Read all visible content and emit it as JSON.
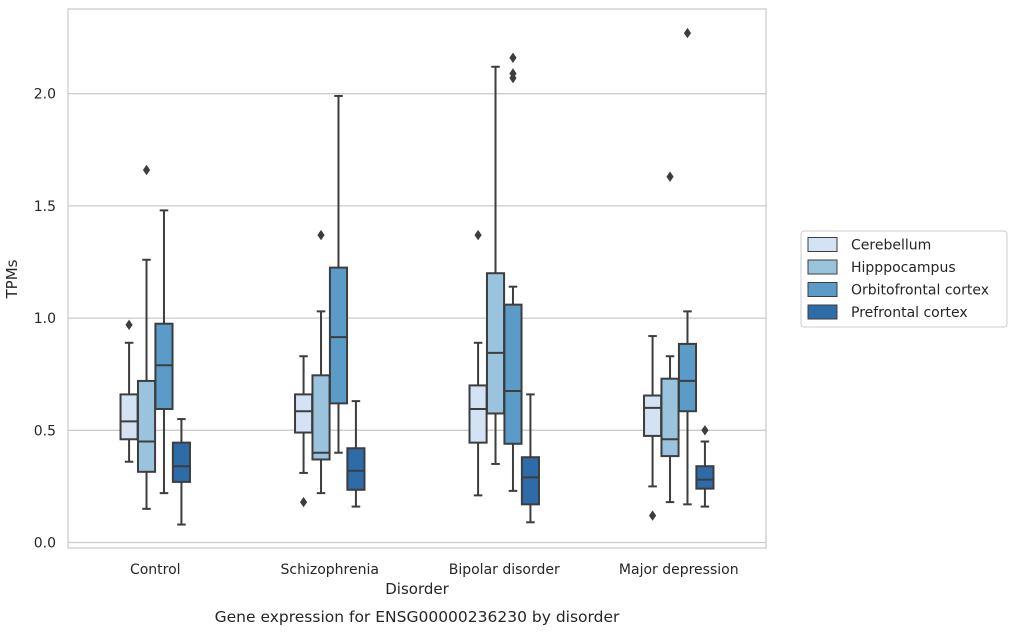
{
  "chart_data": {
    "type": "box",
    "title": "",
    "caption": "Gene expression for ENSG00000236230 by disorder",
    "xlabel": "Disorder",
    "ylabel": "TPMs",
    "ylim": [
      -0.02,
      2.38
    ],
    "yticks": [
      0.0,
      0.5,
      1.0,
      1.5,
      2.0
    ],
    "ytick_labels": [
      "0.0",
      "0.5",
      "1.0",
      "1.5",
      "2.0"
    ],
    "grid": "horizontal",
    "legend_position": "right",
    "categories": [
      "Control",
      "Schizophrenia",
      "Bipolar disorder",
      "Major depression"
    ],
    "series": [
      {
        "name": "Cerebellum",
        "color": "#d3e3f3",
        "boxes": [
          {
            "whislo": 0.36,
            "q1": 0.46,
            "med": 0.54,
            "q3": 0.66,
            "whishi": 0.89,
            "fliers": [
              0.97
            ]
          },
          {
            "whislo": 0.31,
            "q1": 0.49,
            "med": 0.585,
            "q3": 0.66,
            "whishi": 0.83,
            "fliers": [
              0.18
            ]
          },
          {
            "whislo": 0.21,
            "q1": 0.445,
            "med": 0.595,
            "q3": 0.7,
            "whishi": 0.89,
            "fliers": [
              1.37
            ]
          },
          {
            "whislo": 0.25,
            "q1": 0.475,
            "med": 0.6,
            "q3": 0.655,
            "whishi": 0.92,
            "fliers": [
              0.12
            ]
          }
        ]
      },
      {
        "name": "Hipppocampus",
        "color": "#9ac3dd",
        "boxes": [
          {
            "whislo": 0.15,
            "q1": 0.315,
            "med": 0.45,
            "q3": 0.72,
            "whishi": 1.26,
            "fliers": [
              1.66
            ]
          },
          {
            "whislo": 0.22,
            "q1": 0.37,
            "med": 0.4,
            "q3": 0.745,
            "whishi": 1.03,
            "fliers": [
              1.37
            ]
          },
          {
            "whislo": 0.35,
            "q1": 0.575,
            "med": 0.845,
            "q3": 1.2,
            "whishi": 2.12,
            "fliers": []
          },
          {
            "whislo": 0.18,
            "q1": 0.385,
            "med": 0.46,
            "q3": 0.73,
            "whishi": 0.83,
            "fliers": [
              1.63
            ]
          }
        ]
      },
      {
        "name": "Orbitofrontal cortex",
        "color": "#5b9bc8",
        "boxes": [
          {
            "whislo": 0.22,
            "q1": 0.595,
            "med": 0.79,
            "q3": 0.975,
            "whishi": 1.48,
            "fliers": []
          },
          {
            "whislo": 0.4,
            "q1": 0.62,
            "med": 0.915,
            "q3": 1.225,
            "whishi": 1.99,
            "fliers": []
          },
          {
            "whislo": 0.23,
            "q1": 0.44,
            "med": 0.675,
            "q3": 1.06,
            "whishi": 1.14,
            "fliers": [
              2.07,
              2.09,
              2.16
            ]
          },
          {
            "whislo": 0.17,
            "q1": 0.585,
            "med": 0.72,
            "q3": 0.885,
            "whishi": 1.03,
            "fliers": [
              2.27
            ]
          }
        ]
      },
      {
        "name": "Prefrontal cortex",
        "color": "#2e6ba9",
        "boxes": [
          {
            "whislo": 0.08,
            "q1": 0.27,
            "med": 0.34,
            "q3": 0.445,
            "whishi": 0.55,
            "fliers": []
          },
          {
            "whislo": 0.16,
            "q1": 0.235,
            "med": 0.32,
            "q3": 0.42,
            "whishi": 0.63,
            "fliers": []
          },
          {
            "whislo": 0.09,
            "q1": 0.17,
            "med": 0.29,
            "q3": 0.38,
            "whishi": 0.66,
            "fliers": []
          },
          {
            "whislo": 0.16,
            "q1": 0.24,
            "med": 0.28,
            "q3": 0.34,
            "whishi": 0.45,
            "fliers": [
              0.5
            ]
          }
        ]
      }
    ]
  }
}
